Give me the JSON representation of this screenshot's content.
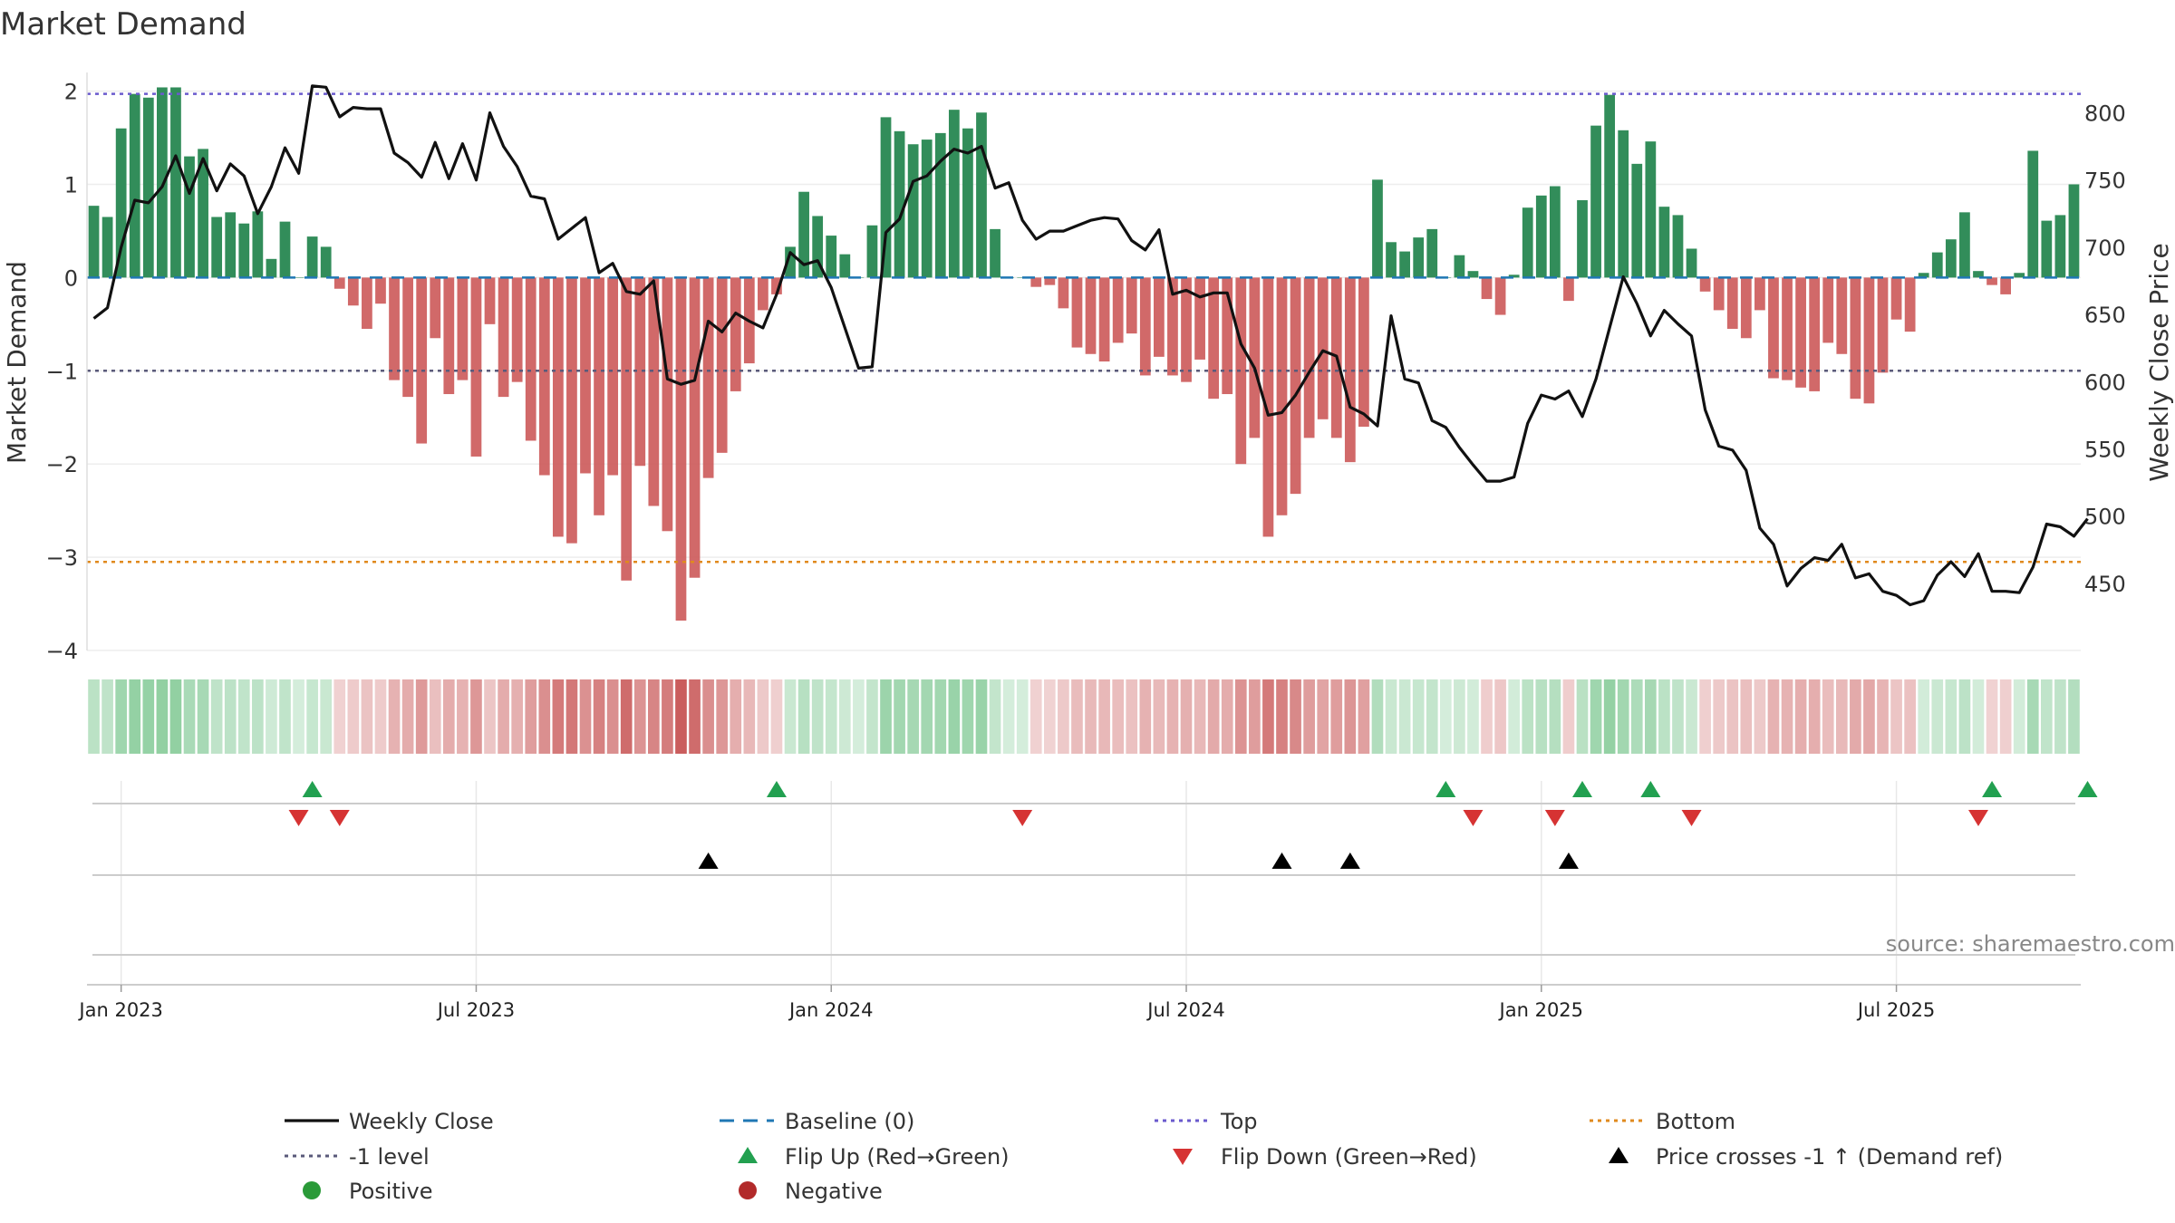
{
  "title": "Market Demand",
  "source": "source: sharemaestro.com",
  "colors": {
    "positive": "#2e8b57",
    "negative": "#cd5c5c",
    "price": "#111111",
    "baseline": "#1f77b4",
    "top": "#6a5acd",
    "bottom": "#e08a1e",
    "minus_one": "#5a5a7a",
    "flip_up": "#22a050",
    "flip_down": "#d63333",
    "cross": "#000000",
    "positive_dot": "#2a9a38",
    "negative_dot": "#b22a2a"
  },
  "chart_data": {
    "type": "bar+line",
    "title": "Market Demand",
    "x_axis": {
      "tick_labels": [
        "Jan 2023",
        "Jul 2023",
        "Jan 2024",
        "Jul 2024",
        "Jan 2025",
        "Jul 2025"
      ],
      "tick_week_index": [
        2,
        28,
        54,
        80,
        106,
        132
      ]
    },
    "left_axis": {
      "label": "Market Demand",
      "range": [
        -4,
        2.2
      ],
      "ticks": [
        2,
        1,
        0,
        -1,
        -2,
        -3,
        -4
      ],
      "tick_labels": [
        "2",
        "1",
        "0",
        "−1",
        "−2",
        "−3",
        "−4"
      ]
    },
    "right_axis": {
      "label": "Weekly Close Price",
      "range": [
        400,
        830
      ],
      "ticks": [
        800,
        750,
        700,
        650,
        600,
        550,
        500,
        450
      ],
      "tick_labels": [
        "800",
        "750",
        "700",
        "650",
        "600",
        "550",
        "500",
        "450"
      ]
    },
    "reference_lines": {
      "top": 1.97,
      "minus_one": -1,
      "bottom": -3.05,
      "baseline": 0
    },
    "demand": [
      0.77,
      0.65,
      1.6,
      1.97,
      1.93,
      2.04,
      2.04,
      1.3,
      1.38,
      0.65,
      0.7,
      0.58,
      0.71,
      0.2,
      0.6,
      0.0,
      0.44,
      0.33,
      -0.12,
      -0.3,
      -0.55,
      -0.28,
      -1.1,
      -1.28,
      -1.78,
      -0.65,
      -1.25,
      -1.1,
      -1.92,
      -0.5,
      -1.28,
      -1.12,
      -1.75,
      -2.12,
      -2.78,
      -2.85,
      -2.1,
      -2.55,
      -2.12,
      -3.25,
      -2.02,
      -2.45,
      -2.72,
      -3.68,
      -3.22,
      -2.15,
      -1.88,
      -1.22,
      -0.92,
      -0.35,
      -0.18,
      0.33,
      0.92,
      0.66,
      0.45,
      0.25,
      0.0,
      0.56,
      1.72,
      1.57,
      1.43,
      1.48,
      1.55,
      1.8,
      1.6,
      1.77,
      0.52,
      0.0,
      0.0,
      -0.1,
      -0.08,
      -0.33,
      -0.75,
      -0.82,
      -0.9,
      -0.7,
      -0.6,
      -1.05,
      -0.85,
      -1.05,
      -1.12,
      -0.88,
      -1.3,
      -1.25,
      -2.0,
      -1.72,
      -2.78,
      -2.55,
      -2.32,
      -1.72,
      -1.52,
      -1.72,
      -1.98,
      -1.6,
      1.05,
      0.38,
      0.28,
      0.43,
      0.52,
      0.0,
      0.24,
      0.07,
      -0.23,
      -0.4,
      0.03,
      0.75,
      0.88,
      0.98,
      -0.25,
      0.83,
      1.63,
      1.96,
      1.58,
      1.22,
      1.46,
      0.76,
      0.67,
      0.31,
      -0.15,
      -0.35,
      -0.55,
      -0.65,
      -0.35,
      -1.08,
      -1.1,
      -1.18,
      -1.22,
      -0.7,
      -0.82,
      -1.3,
      -1.35,
      -1.02,
      -0.45,
      -0.58,
      0.05,
      0.27,
      0.41,
      0.7,
      0.07,
      -0.08,
      -0.18,
      0.05,
      1.36,
      0.61,
      0.67,
      1.0
    ],
    "close": [
      647,
      655,
      700,
      735,
      733,
      745,
      768,
      740,
      766,
      742,
      762,
      753,
      725,
      745,
      774,
      755,
      820,
      819,
      797,
      804,
      803,
      803,
      770,
      763,
      752,
      778,
      751,
      777,
      750,
      800,
      775,
      760,
      738,
      736,
      706,
      714,
      722,
      681,
      688,
      667,
      665,
      675,
      602,
      598,
      601,
      645,
      637,
      651,
      645,
      640,
      665,
      696,
      687,
      690,
      670,
      640,
      610,
      611,
      711,
      721,
      749,
      753,
      764,
      773,
      770,
      775,
      744,
      748,
      720,
      706,
      712,
      712,
      716,
      720,
      722,
      721,
      705,
      698,
      713,
      665,
      668,
      663,
      666,
      666,
      628,
      610,
      575,
      577,
      590,
      607,
      623,
      619,
      581,
      576,
      567,
      649,
      602,
      599,
      571,
      566,
      551,
      538,
      526,
      526,
      529,
      569,
      590,
      587,
      593,
      574,
      602,
      640,
      678,
      658,
      634,
      653,
      643,
      634,
      579,
      552,
      549,
      534,
      491,
      479,
      448,
      461,
      469,
      467,
      479,
      454,
      457,
      444,
      441,
      434,
      437,
      456,
      466,
      455,
      472,
      444,
      444,
      443,
      462,
      494,
      492,
      485,
      498
    ],
    "flip_up_index": [
      16,
      50,
      99,
      109,
      114,
      139,
      146
    ],
    "flip_down_index": [
      15,
      18,
      68,
      101,
      107,
      117,
      138
    ],
    "cross_index": [
      45,
      87,
      92,
      108
    ],
    "legend": [
      "Weekly Close",
      "Baseline (0)",
      "Top",
      "Bottom",
      "-1 level",
      "Flip Up (Red→Green)",
      "Flip Down (Green→Red)",
      "Price crosses -1 ↑ (Demand ref)",
      "Positive",
      "Negative"
    ]
  }
}
